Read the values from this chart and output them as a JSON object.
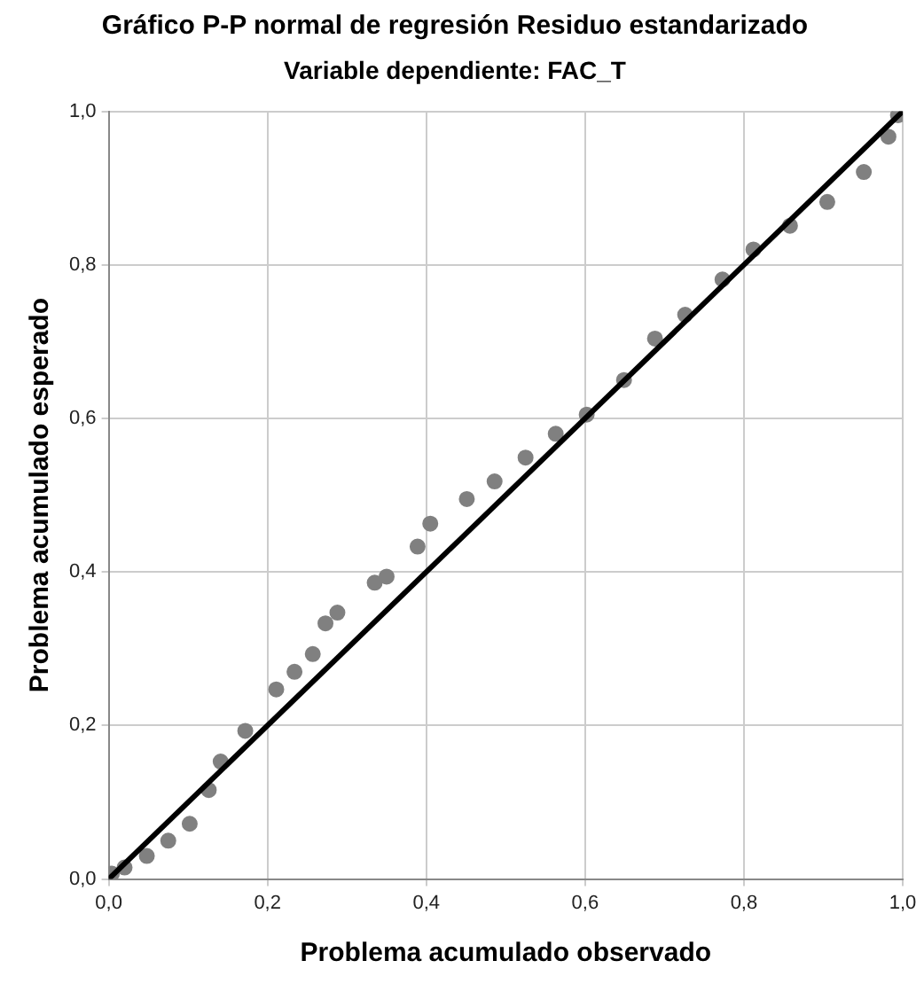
{
  "chart_data": {
    "type": "scatter",
    "title": "Gráfico P-P normal de regresión Residuo estandarizado",
    "subtitle": "Variable dependiente: FAC_T",
    "xlabel": "Problema acumulado observado",
    "ylabel": "Problema acumulado esperado",
    "xlim": [
      0,
      1
    ],
    "ylim": [
      0,
      1
    ],
    "xticks": [
      {
        "value": 0,
        "label": "0,0"
      },
      {
        "value": 0.2,
        "label": "0,2"
      },
      {
        "value": 0.4,
        "label": "0,4"
      },
      {
        "value": 0.6,
        "label": "0,6"
      },
      {
        "value": 0.8,
        "label": "0,8"
      },
      {
        "value": 1,
        "label": "1,0"
      }
    ],
    "yticks": [
      {
        "value": 0,
        "label": "0,0"
      },
      {
        "value": 0.2,
        "label": "0,2"
      },
      {
        "value": 0.4,
        "label": "0,4"
      },
      {
        "value": 0.6,
        "label": "0,6"
      },
      {
        "value": 0.8,
        "label": "0,8"
      },
      {
        "value": 1,
        "label": "1,0"
      }
    ],
    "grid": true,
    "series": [
      {
        "marker": "circle",
        "color": "#808080",
        "x": [
          0.004,
          0.02,
          0.048,
          0.075,
          0.102,
          0.126,
          0.141,
          0.172,
          0.211,
          0.234,
          0.257,
          0.273,
          0.288,
          0.335,
          0.35,
          0.389,
          0.405,
          0.451,
          0.486,
          0.525,
          0.563,
          0.602,
          0.649,
          0.688,
          0.726,
          0.773,
          0.812,
          0.858,
          0.905,
          0.951,
          0.982,
          0.994
        ],
        "values": [
          0.007,
          0.015,
          0.03,
          0.05,
          0.072,
          0.116,
          0.153,
          0.193,
          0.247,
          0.27,
          0.293,
          0.333,
          0.347,
          0.386,
          0.394,
          0.433,
          0.463,
          0.495,
          0.518,
          0.549,
          0.58,
          0.605,
          0.65,
          0.704,
          0.735,
          0.781,
          0.82,
          0.851,
          0.882,
          0.921,
          0.967,
          0.995
        ]
      },
      {
        "type": "line",
        "color": "#000000",
        "x": [
          0,
          1
        ],
        "values": [
          0,
          1
        ],
        "line_style": "solid",
        "marker": "none"
      }
    ]
  }
}
